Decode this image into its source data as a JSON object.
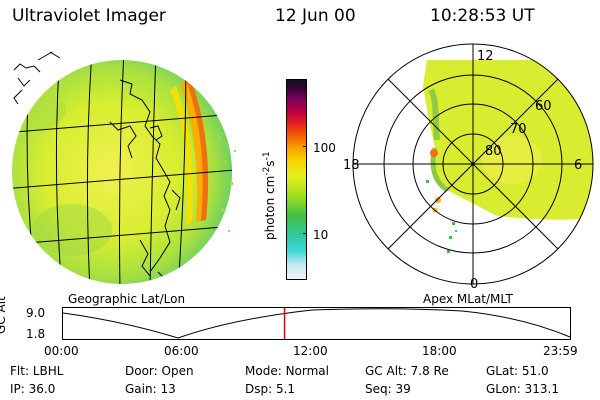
{
  "header": {
    "instrument": "Ultraviolet Imager",
    "date": "12 Jun 00",
    "time": "10:28:53 UT"
  },
  "colorbar": {
    "label": "photon cm",
    "label_sup1": "-2",
    "label_mid": "s",
    "label_sup2": "-1",
    "ticks": [
      "100",
      "10"
    ],
    "colors": [
      "#f4f4f4",
      "#c8e8f4",
      "#40d8d8",
      "#30c8a0",
      "#40c040",
      "#a0e020",
      "#e8f020",
      "#f8d000",
      "#f8a000",
      "#f06000",
      "#e82020",
      "#c00040",
      "#800060",
      "#400040",
      "#101018"
    ]
  },
  "left_panel": {
    "label": "Geographic Lat/Lon"
  },
  "right_panel": {
    "label": "Apex MLat/MLT",
    "mlt_labels": [
      "12",
      "18",
      "6",
      "0"
    ],
    "lat_labels": [
      "60",
      "70",
      "80"
    ]
  },
  "altitude_plot": {
    "ylabel": "GC Alt",
    "yticks": [
      "9.0",
      "1.8"
    ],
    "xticks": [
      "00:00",
      "06:00",
      "12:00",
      "18:00",
      "23:59"
    ],
    "current_time_fraction": 0.437,
    "marker_color": "#e00000"
  },
  "info": {
    "flt_label": "Flt:",
    "flt_value": "LBHL",
    "door_label": "Door:",
    "door_value": "Open",
    "mode_label": "Mode:",
    "mode_value": "Normal",
    "gcalt_label": "GC Alt:",
    "gcalt_value": "7.8 Re",
    "glat_label": "GLat:",
    "glat_value": "51.0",
    "ip_label": "IP:",
    "ip_value": "36.0",
    "gain_label": "Gain:",
    "gain_value": "13",
    "dsp_label": "Dsp:",
    "dsp_value": "5.1",
    "seq_label": "Seq:",
    "seq_value": "39",
    "glon_label": "GLon:",
    "glon_value": "313.1"
  }
}
